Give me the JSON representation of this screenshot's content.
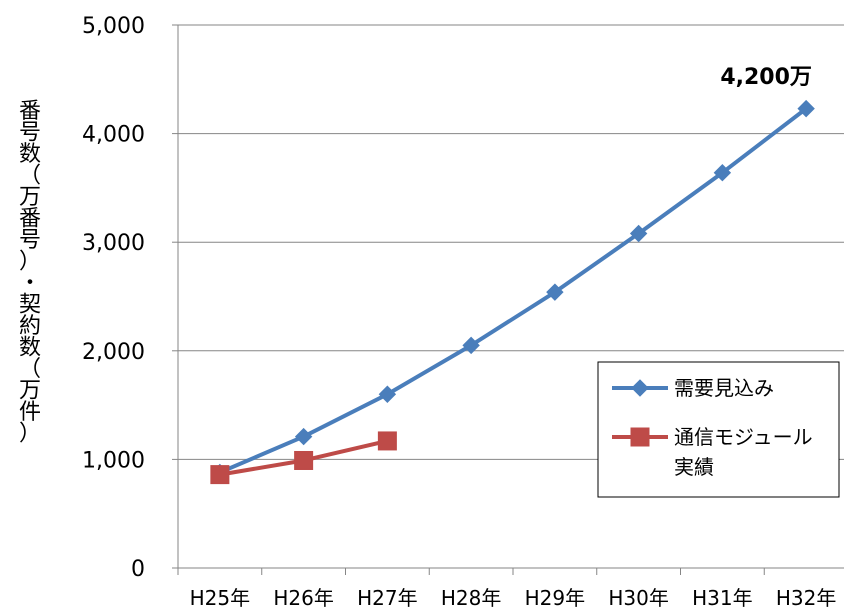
{
  "chart_data": {
    "type": "line",
    "categories": [
      "H25年",
      "H26年",
      "H27年",
      "H28年",
      "H29年",
      "H30年",
      "H31年",
      "H32年"
    ],
    "series": [
      {
        "name": "需要見込み",
        "color": "#4a7ebb",
        "marker": "diamond",
        "values": [
          880,
          1210,
          1600,
          2050,
          2540,
          3080,
          3640,
          4230
        ]
      },
      {
        "name": "通信モジュール実績",
        "legend_lines": [
          "通信モジュール",
          "実績"
        ],
        "color": "#be4b48",
        "marker": "square",
        "values": [
          860,
          990,
          1170,
          null,
          null,
          null,
          null,
          null
        ]
      }
    ],
    "ylabel": "番号数（万番号）・契約数（万件）",
    "ylim": [
      0,
      5000
    ],
    "yticks": [
      0,
      1000,
      2000,
      3000,
      4000,
      5000
    ],
    "ytick_labels": [
      "0",
      "1,000",
      "2,000",
      "3,000",
      "4,000",
      "5,000"
    ],
    "grid": true,
    "legend_position": "right",
    "annotations": [
      {
        "text": "4,200万",
        "category": "H32年",
        "series": "需要見込み"
      }
    ]
  }
}
